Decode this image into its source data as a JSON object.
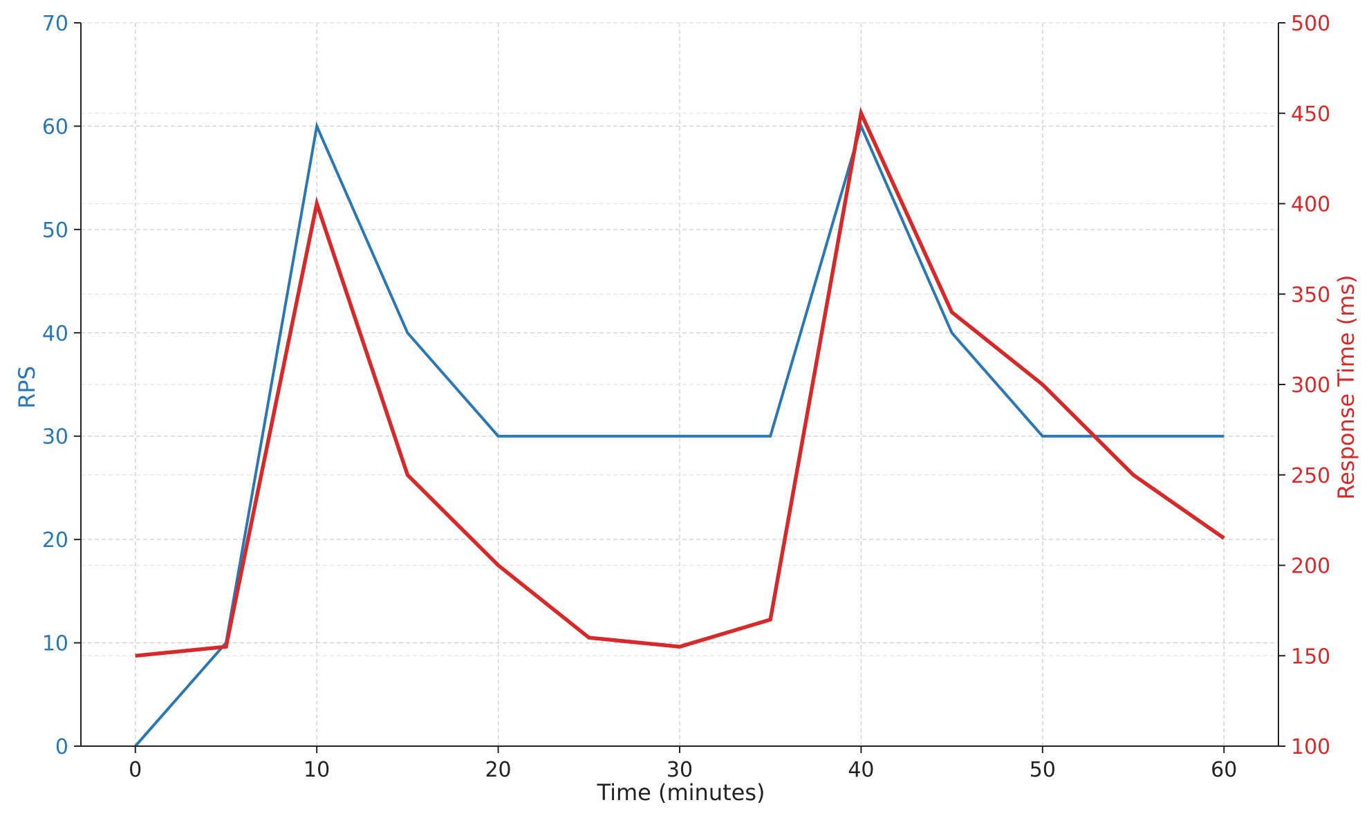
{
  "chart_data": {
    "type": "line",
    "title": "",
    "xlabel": "Time (minutes)",
    "ylabel": "RPS",
    "y2label": "Response Time (ms)",
    "xlim": [
      -3,
      63
    ],
    "ylim": [
      0,
      70
    ],
    "y2lim": [
      100,
      500
    ],
    "xticks": [
      0,
      10,
      20,
      30,
      40,
      50,
      60
    ],
    "yticks": [
      0,
      10,
      20,
      30,
      40,
      50,
      60,
      70
    ],
    "y2ticks": [
      100,
      150,
      200,
      250,
      300,
      350,
      400,
      450,
      500
    ],
    "grid": true,
    "legend": "none",
    "x": [
      0,
      5,
      10,
      15,
      20,
      25,
      30,
      35,
      40,
      45,
      50,
      55,
      60
    ],
    "series": [
      {
        "axis": "left",
        "color": "#2a77b4",
        "values": [
          0,
          10,
          60,
          40,
          30,
          30,
          30,
          30,
          60,
          40,
          30,
          30,
          30
        ]
      },
      {
        "axis": "right",
        "color": "#d62a2a",
        "values": [
          150,
          155,
          400,
          250,
          200,
          160,
          155,
          170,
          450,
          340,
          300,
          250,
          215
        ]
      }
    ],
    "colors": {
      "left_axis": "#2a77b4",
      "right_axis": "#d62a2a",
      "text": "#222222"
    }
  }
}
